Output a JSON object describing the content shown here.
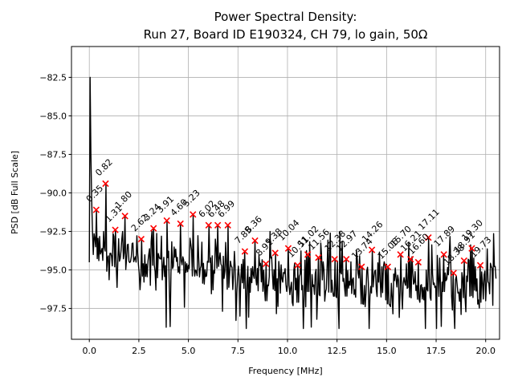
{
  "figure": {
    "title_line1": "Power Spectral Density:",
    "title_line2": "Run 27, Board ID E190324, CH 79, lo gain, 50Ω",
    "xlabel": "Frequency [MHz]",
    "ylabel": "PSD [dB Full Scale]"
  },
  "chart_data": {
    "type": "line",
    "title": "Power Spectral Density:\nRun 27, Board ID E190324, CH 79, lo gain, 50Ω",
    "xlabel": "Frequency [MHz]",
    "ylabel": "PSD [dB Full Scale]",
    "xlim": [
      -0.9,
      20.7
    ],
    "ylim": [
      -99.5,
      -80.5
    ],
    "xticks": [
      0.0,
      2.5,
      5.0,
      7.5,
      10.0,
      12.5,
      15.0,
      17.5,
      20.0
    ],
    "yticks": [
      -82.5,
      -85.0,
      -87.5,
      -90.0,
      -92.5,
      -95.0,
      -97.5
    ],
    "grid": true,
    "grid_color": "#b0b0b0",
    "line_color": "#000000",
    "marker_color": "#ff0000",
    "marker_style": "x",
    "annotation_rotation_deg": 45,
    "dc_spike_profile": [
      [
        0.0,
        -94.5
      ],
      [
        0.04,
        -82.5
      ],
      [
        0.08,
        -87.5
      ],
      [
        0.12,
        -90.5
      ],
      [
        0.16,
        -92.5
      ],
      [
        0.2,
        -94.0
      ]
    ],
    "peaks": [
      {
        "f": 0.35,
        "psd": -91.1,
        "label": "0.35"
      },
      {
        "f": 0.82,
        "psd": -89.4,
        "label": "0.82"
      },
      {
        "f": 1.31,
        "psd": -92.4,
        "label": "1.31"
      },
      {
        "f": 1.8,
        "psd": -91.5,
        "label": "1.80"
      },
      {
        "f": 2.62,
        "psd": -93.0,
        "label": "2.62"
      },
      {
        "f": 3.24,
        "psd": -92.3,
        "label": "3.24"
      },
      {
        "f": 3.91,
        "psd": -91.8,
        "label": "3.91"
      },
      {
        "f": 4.6,
        "psd": -92.0,
        "label": "4.60"
      },
      {
        "f": 5.23,
        "psd": -91.4,
        "label": "5.23"
      },
      {
        "f": 6.02,
        "psd": -92.1,
        "label": "6.02"
      },
      {
        "f": 6.48,
        "psd": -92.1,
        "label": "6.48"
      },
      {
        "f": 6.99,
        "psd": -92.1,
        "label": "6.99"
      },
      {
        "f": 7.85,
        "psd": -93.8,
        "label": "7.85"
      },
      {
        "f": 8.36,
        "psd": -93.1,
        "label": "8.36"
      },
      {
        "f": 8.91,
        "psd": -94.6,
        "label": "8.91"
      },
      {
        "f": 9.38,
        "psd": -93.9,
        "label": "9.38"
      },
      {
        "f": 10.04,
        "psd": -93.6,
        "label": "10.04"
      },
      {
        "f": 10.51,
        "psd": -94.7,
        "label": "10.51"
      },
      {
        "f": 11.02,
        "psd": -94.0,
        "label": "11.02"
      },
      {
        "f": 11.56,
        "psd": -94.2,
        "label": "11.56"
      },
      {
        "f": 12.38,
        "psd": -94.3,
        "label": "12.38"
      },
      {
        "f": 12.97,
        "psd": -94.3,
        "label": "12.97"
      },
      {
        "f": 13.74,
        "psd": -94.8,
        "label": "13.74"
      },
      {
        "f": 14.26,
        "psd": -93.7,
        "label": "14.26"
      },
      {
        "f": 15.06,
        "psd": -94.8,
        "label": "15.06"
      },
      {
        "f": 15.7,
        "psd": -94.0,
        "label": "15.70"
      },
      {
        "f": 16.21,
        "psd": -94.3,
        "label": "16.21"
      },
      {
        "f": 16.6,
        "psd": -94.5,
        "label": "16.60"
      },
      {
        "f": 17.11,
        "psd": -92.9,
        "label": "17.11"
      },
      {
        "f": 17.89,
        "psd": -94.0,
        "label": "17.89"
      },
      {
        "f": 18.38,
        "psd": -95.2,
        "label": "18.38"
      },
      {
        "f": 18.91,
        "psd": -94.4,
        "label": "18.91"
      },
      {
        "f": 19.3,
        "psd": -93.6,
        "label": "19.30"
      },
      {
        "f": 19.73,
        "psd": -94.7,
        "label": "19.73"
      }
    ],
    "noise_floor_anchors": [
      [
        0.3,
        -93.6
      ],
      [
        1.0,
        -93.8
      ],
      [
        2.0,
        -94.2
      ],
      [
        3.0,
        -94.4
      ],
      [
        5.0,
        -94.6
      ],
      [
        7.0,
        -95.0
      ],
      [
        8.8,
        -95.6
      ],
      [
        11.0,
        -95.5
      ],
      [
        13.0,
        -95.8
      ],
      [
        15.0,
        -95.7
      ],
      [
        17.0,
        -95.8
      ],
      [
        19.0,
        -96.0
      ],
      [
        20.5,
        -95.6
      ]
    ],
    "noise_band_db": 2.1,
    "deep_dip_floor_db": -98.8,
    "f_max": 20.5
  }
}
